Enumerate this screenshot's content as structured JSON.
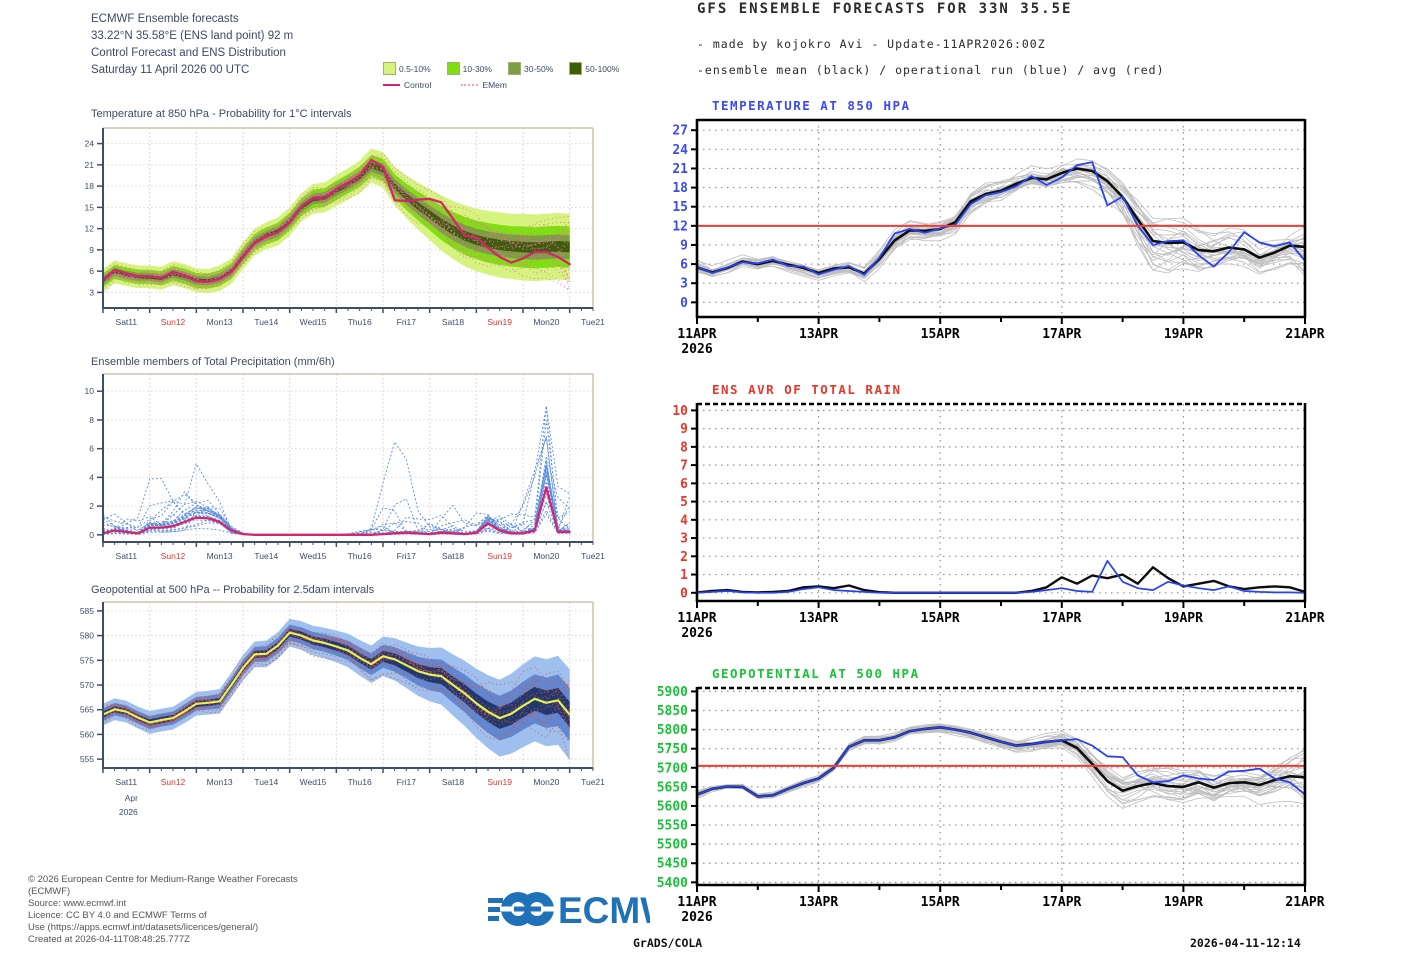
{
  "left_panel": {
    "header": {
      "line1": "ECMWF Ensemble forecasts",
      "line2": "33.22°N 35.58°E (ENS land point) 92 m",
      "line3": "Control Forecast and ENS Distribution",
      "line4": "Saturday 11 April 2026 00 UTC"
    },
    "legend": {
      "bands": [
        {
          "label": "0.5-10%",
          "color": "#d6f37f"
        },
        {
          "label": "10-30%",
          "color": "#7fe010"
        },
        {
          "label": "30-50%",
          "color": "#7d9c43"
        },
        {
          "label": "50-100%",
          "color": "#3f5c0d"
        }
      ],
      "control_label": "Control",
      "control_color": "#d6246e",
      "emem_label": "EMem",
      "emem_color": "#f2a6c6"
    },
    "x_axis": {
      "labels": [
        "Sat11",
        "Sun12",
        "Mon13",
        "Tue14",
        "Wed15",
        "Thu16",
        "Fri17",
        "Sat18",
        "Sun19",
        "Mon20",
        "Tue21"
      ],
      "red_idx": [
        1,
        8
      ],
      "month": "Apr",
      "year": "2026"
    },
    "footer": {
      "line1": "© 2026 European Centre for Medium-Range Weather Forecasts",
      "line2": "(ECMWF)",
      "line3": "Source: www.ecmwf.int",
      "line4": "Licence: CC BY 4.0 and ECMWF Terms of",
      "line5": "Use (https://apps.ecmwf.int/datasets/licences/general/)",
      "line6": "Created at 2026-04-11T08:48:25.777Z"
    },
    "logo_text": "ECMWF",
    "logo_color": "#1f72b8"
  },
  "right_panel": {
    "title": "GFS ENSEMBLE FORECASTS FOR 33N 35.5E",
    "subtitle1": "- made by kojokro Avi - Update-11APR2026:00Z",
    "subtitle2": "-ensemble mean (black) / operational run (blue) / avg (red)",
    "x_axis": {
      "labels": [
        "11APR",
        "13APR",
        "15APR",
        "17APR",
        "19APR",
        "21APR"
      ],
      "year": "2026"
    },
    "footer_left": "GrADS/COLA",
    "footer_right": "2026-04-11-12:14"
  },
  "chart_data": [
    {
      "id": "ecmwf_temp",
      "type": "line",
      "title": "Temperature at 850 hPa - Probability for 1°C intervals",
      "ylim": [
        0.8,
        26.2
      ],
      "yticks": [
        3,
        6,
        9,
        12,
        15,
        18,
        21,
        24
      ],
      "x_days": 10.5,
      "x_step": 0.25,
      "grid": true,
      "legend_position": "top-right",
      "bands": {
        "factors": [
          1,
          0.62,
          0.36,
          0.16
        ],
        "colors": [
          "#d6f37f",
          "#7fe010",
          "#7d9c43",
          "#3f5c0d"
        ]
      },
      "median": [
        4.7,
        5.9,
        5.5,
        5.2,
        5.2,
        5.0,
        5.7,
        5.3,
        4.7,
        4.6,
        5.0,
        6.0,
        8.2,
        10.1,
        11.0,
        11.6,
        13.0,
        15.0,
        16.2,
        16.4,
        17.4,
        18.3,
        19.3,
        20.9,
        20.3,
        18.0,
        16.5,
        15.2,
        14.0,
        12.8,
        11.8,
        11.0,
        10.4,
        10.0,
        9.7,
        9.5,
        9.4,
        9.3,
        9.4,
        9.5,
        9.4
      ],
      "spread": [
        1.6,
        1.6,
        1.6,
        1.6,
        1.6,
        1.6,
        1.7,
        1.7,
        1.7,
        1.7,
        1.8,
        1.8,
        1.9,
        1.9,
        1.9,
        2.0,
        2.0,
        2.0,
        2.1,
        2.1,
        2.2,
        2.2,
        2.3,
        2.4,
        2.5,
        2.7,
        3.0,
        3.3,
        3.6,
        3.9,
        4.1,
        4.3,
        4.4,
        4.5,
        4.6,
        4.6,
        4.7,
        4.7,
        4.7,
        4.7,
        4.7
      ],
      "members": {
        "count": 18,
        "color": "#ef6fae",
        "dash": "1 3",
        "width": 0.9,
        "scale": 0.85
      },
      "series": [
        {
          "name": "Control",
          "color": "#d6246e",
          "width": 2.3,
          "values": [
            4.8,
            6.2,
            5.7,
            5.3,
            5.3,
            5.0,
            5.9,
            5.4,
            4.6,
            4.5,
            4.9,
            5.9,
            8.0,
            10.0,
            10.9,
            11.5,
            12.9,
            15.1,
            16.3,
            16.2,
            17.6,
            18.5,
            19.5,
            21.7,
            20.7,
            16.0,
            15.9,
            16.1,
            16.2,
            15.7,
            13.4,
            11.0,
            10.8,
            9.3,
            8.0,
            7.2,
            7.8,
            8.7,
            8.7,
            8.0,
            7.0
          ]
        }
      ]
    },
    {
      "id": "ecmwf_precip",
      "type": "line",
      "title": "Ensemble members of Total Precipitation (mm/6h)",
      "ylim": [
        -0.5,
        11.2
      ],
      "yticks": [
        0,
        2,
        4,
        6,
        8,
        10
      ],
      "x_days": 10.5,
      "x_step": 0.25,
      "grid": true,
      "median": [
        0.1,
        0.3,
        0.2,
        0.1,
        0.5,
        0.5,
        0.6,
        0.9,
        1.2,
        1.15,
        0.9,
        0.3,
        0.05,
        0,
        0,
        0,
        0,
        0,
        0,
        0,
        0,
        0,
        0,
        0,
        0.05,
        0.1,
        0.15,
        0.1,
        0.05,
        0.15,
        0.1,
        0.05,
        0.15,
        0.8,
        0.3,
        0.1,
        0.1,
        0.3,
        3.3,
        0.2,
        0.2
      ],
      "spread": [
        0.4,
        0.5,
        0.5,
        0.4,
        0.8,
        1.1,
        1.6,
        2.0,
        2.3,
        2.0,
        1.5,
        0.8,
        0.3,
        0,
        0,
        0,
        0,
        0,
        0,
        0,
        0,
        0.1,
        0.3,
        0.6,
        1.5,
        2.5,
        2.8,
        2.5,
        2.2,
        2.8,
        2.5,
        2.2,
        2.0,
        2.5,
        2.0,
        1.5,
        1.8,
        2.5,
        3.5,
        1.5,
        0.8
      ],
      "members": {
        "count": 26,
        "color": "#5b8ede",
        "dash": "2 2",
        "width": 0.9,
        "mode": "rain",
        "scale": 2.2
      },
      "series": [
        {
          "name": "Control",
          "color": "#d6246e",
          "width": 2.3,
          "values": [
            0.1,
            0.3,
            0.2,
            0.1,
            0.5,
            0.5,
            0.6,
            0.9,
            1.2,
            1.15,
            0.9,
            0.3,
            0.05,
            0,
            0,
            0,
            0,
            0,
            0,
            0,
            0,
            0,
            0,
            0,
            0.05,
            0.1,
            0.15,
            0.1,
            0.05,
            0.15,
            0.1,
            0.05,
            0.15,
            0.8,
            0.3,
            0.1,
            0.1,
            0.3,
            3.3,
            0.2,
            0.2
          ]
        }
      ]
    },
    {
      "id": "ecmwf_geo",
      "type": "line",
      "title": "Geopotential at 500 hPa -- Probability for 2.5dam intervals",
      "ylim": [
        553.2,
        586.8
      ],
      "yticks": [
        555,
        560,
        565,
        570,
        575,
        580,
        585
      ],
      "x_days": 10.5,
      "x_step": 0.25,
      "grid": true,
      "show_month_year": true,
      "bands": {
        "factors": [
          1,
          0.58,
          0.28
        ],
        "colors": [
          "#9fc0ee",
          "#5f87d2",
          "#20386e"
        ]
      },
      "median": [
        564.0,
        565.1,
        564.6,
        563.4,
        562.4,
        562.9,
        563.3,
        564.7,
        566.2,
        566.4,
        566.7,
        570.0,
        573.5,
        576.2,
        576.3,
        578.0,
        580.6,
        580.0,
        579.0,
        578.5,
        577.8,
        577.0,
        575.5,
        574.2,
        575.8,
        575.2,
        574.0,
        572.8,
        572.1,
        571.8,
        570.0,
        568.3,
        566.3,
        564.6,
        563.3,
        564.2,
        565.8,
        567.2,
        566.4,
        566.9,
        564.0
      ],
      "spread": [
        2.2,
        2.2,
        2.2,
        2.2,
        2.3,
        2.3,
        2.3,
        2.4,
        2.4,
        2.4,
        2.5,
        2.5,
        2.6,
        2.6,
        2.7,
        2.7,
        2.8,
        2.9,
        3.0,
        3.1,
        3.2,
        3.4,
        3.6,
        3.8,
        4.0,
        4.3,
        4.6,
        5.0,
        5.4,
        5.8,
        6.2,
        6.6,
        7.0,
        7.4,
        7.8,
        8.1,
        8.4,
        8.6,
        8.8,
        9.0,
        9.2
      ],
      "members": {
        "count": 16,
        "color": "#e0523c",
        "dash": "1 3",
        "width": 0.9,
        "scale": 0.8
      },
      "series": [
        {
          "name": "Control",
          "color": "#e8ef55",
          "width": 2.2,
          "values": [
            564.0,
            565.1,
            564.6,
            563.4,
            562.4,
            562.9,
            563.3,
            564.7,
            566.2,
            566.4,
            566.7,
            570.0,
            573.5,
            576.2,
            576.3,
            578.0,
            580.6,
            580.0,
            579.0,
            578.5,
            577.8,
            577.0,
            575.5,
            574.2,
            575.8,
            575.2,
            574.0,
            572.8,
            572.1,
            571.8,
            570.0,
            568.3,
            566.3,
            564.6,
            563.3,
            564.2,
            565.8,
            567.2,
            566.4,
            566.9,
            564.0
          ]
        }
      ]
    },
    {
      "id": "gfs_temp",
      "type": "line",
      "title": "TEMPERATURE AT 850 HPA",
      "title_color": "#3b4bf0",
      "label_color": "#3b4bf0",
      "ylim": [
        -2.3,
        28.6
      ],
      "yticks": [
        0,
        3,
        6,
        9,
        12,
        15,
        18,
        21,
        24,
        27
      ],
      "x_days": 10,
      "x_step": 0.25,
      "grid": true,
      "top_solid": true,
      "avg_line": {
        "value": 12,
        "color": "#f03c32"
      },
      "median": [
        5.5,
        4.7,
        5.4,
        6.4,
        6.0,
        6.5,
        5.9,
        5.4,
        4.6,
        5.3,
        5.5,
        4.5,
        6.8,
        9.7,
        11.3,
        11.2,
        11.5,
        12.6,
        15.8,
        17.0,
        17.5,
        18.6,
        19.5,
        19.3,
        20.3,
        21.0,
        20.6,
        19.0,
        16.5,
        13.0,
        9.6,
        9.3,
        9.4,
        8.2,
        8.0,
        8.6,
        8.3,
        7.0,
        7.8,
        8.9,
        8.7
      ],
      "spread": [
        0.8,
        0.8,
        0.9,
        0.9,
        1.0,
        1.0,
        1.0,
        1.1,
        1.1,
        1.2,
        1.2,
        1.3,
        1.4,
        1.5,
        1.5,
        1.5,
        1.6,
        1.6,
        1.7,
        1.7,
        1.8,
        1.8,
        1.9,
        2.0,
        2.1,
        2.3,
        2.6,
        3.2,
        3.8,
        4.4,
        4.6,
        4.4,
        4.0,
        3.6,
        3.2,
        3.0,
        2.9,
        2.8,
        2.8,
        2.9,
        3.0
      ],
      "members": {
        "count": 26,
        "color": "#bfbfbf",
        "width": 0.8,
        "scale": 1
      },
      "series": [
        {
          "name": "ensemble mean",
          "color": "#0d0d0d",
          "width": 2.6,
          "values": [
            5.5,
            4.7,
            5.4,
            6.4,
            6.0,
            6.5,
            5.9,
            5.4,
            4.6,
            5.3,
            5.5,
            4.5,
            6.8,
            9.7,
            11.3,
            11.2,
            11.5,
            12.6,
            15.8,
            17.0,
            17.5,
            18.6,
            19.5,
            19.3,
            20.3,
            21.0,
            20.6,
            19.0,
            16.5,
            13.0,
            9.6,
            9.3,
            9.4,
            8.2,
            8.0,
            8.6,
            8.3,
            7.0,
            7.8,
            8.9,
            8.7
          ]
        },
        {
          "name": "operational run",
          "color": "#2743ee",
          "width": 1.8,
          "values": [
            5.6,
            4.6,
            5.5,
            6.3,
            6.1,
            6.7,
            5.7,
            5.6,
            4.4,
            5.1,
            5.7,
            4.3,
            7.0,
            10.8,
            11.5,
            10.9,
            11.6,
            12.2,
            15.4,
            16.8,
            17.3,
            18.2,
            19.8,
            18.4,
            19.6,
            21.5,
            22.0,
            15.2,
            16.6,
            12.0,
            9.0,
            9.6,
            9.7,
            7.4,
            5.6,
            7.9,
            11.0,
            9.4,
            8.8,
            9.4,
            6.5
          ]
        }
      ]
    },
    {
      "id": "gfs_rain",
      "type": "line",
      "title": "ENS AVR OF TOTAL RAIN",
      "title_color": "#e8372c",
      "label_color": "#e8372c",
      "ylim": [
        -0.45,
        10.35
      ],
      "yticks": [
        0,
        1,
        2,
        3,
        4,
        5,
        6,
        7,
        8,
        9,
        10
      ],
      "x_days": 10,
      "x_step": 0.25,
      "grid": true,
      "series": [
        {
          "name": "ensemble mean",
          "color": "#0d0d0d",
          "width": 2.4,
          "values": [
            0.02,
            0.1,
            0.15,
            0.05,
            0.02,
            0.05,
            0.1,
            0.3,
            0.35,
            0.25,
            0.4,
            0.15,
            0.03,
            0,
            0,
            0,
            0,
            0,
            0,
            0,
            0,
            0,
            0.1,
            0.3,
            0.85,
            0.5,
            0.95,
            0.8,
            1.0,
            0.5,
            1.4,
            0.8,
            0.35,
            0.5,
            0.65,
            0.35,
            0.2,
            0.3,
            0.35,
            0.3,
            0.05
          ]
        },
        {
          "name": "operational run",
          "color": "#2743ee",
          "width": 1.7,
          "values": [
            0,
            0.05,
            0.1,
            0.02,
            0,
            0,
            0.05,
            0.2,
            0.3,
            0.15,
            0.1,
            0.05,
            0,
            0,
            0,
            0,
            0,
            0,
            0,
            0,
            0,
            0,
            0.05,
            0.15,
            0.25,
            0.1,
            0.05,
            1.75,
            0.6,
            0.25,
            0.15,
            0.6,
            0.4,
            0.25,
            0.15,
            0.35,
            0.1,
            0.05,
            0.02,
            0.02,
            0
          ]
        }
      ]
    },
    {
      "id": "gfs_geo",
      "type": "line",
      "title": "GEOPOTENTIAL AT 500 HPA",
      "title_color": "#17c437",
      "label_color": "#17c437",
      "ylim": [
        5393,
        5909
      ],
      "yticks": [
        5400,
        5450,
        5500,
        5550,
        5600,
        5650,
        5700,
        5750,
        5800,
        5850,
        5900
      ],
      "x_days": 10,
      "x_step": 0.25,
      "grid": true,
      "avg_line": {
        "value": 5705,
        "color": "#f03c32"
      },
      "median": [
        5630,
        5645,
        5651,
        5650,
        5625,
        5628,
        5645,
        5660,
        5672,
        5700,
        5755,
        5772,
        5772,
        5780,
        5796,
        5802,
        5806,
        5800,
        5792,
        5780,
        5768,
        5758,
        5762,
        5768,
        5772,
        5752,
        5710,
        5665,
        5640,
        5652,
        5660,
        5652,
        5650,
        5662,
        5648,
        5660,
        5662,
        5655,
        5668,
        5678,
        5675
      ],
      "spread": [
        7,
        7,
        7,
        8,
        8,
        8,
        9,
        9,
        9,
        10,
        11,
        12,
        12,
        13,
        13,
        14,
        14,
        15,
        15,
        16,
        16,
        17,
        18,
        19,
        20,
        24,
        30,
        38,
        44,
        48,
        50,
        50,
        50,
        50,
        50,
        48,
        46,
        45,
        45,
        46,
        47
      ],
      "members": {
        "count": 26,
        "color": "#bfbfbf",
        "width": 0.8,
        "scale": 1
      },
      "series": [
        {
          "name": "ensemble mean",
          "color": "#0d0d0d",
          "width": 2.6,
          "values": [
            5630,
            5645,
            5651,
            5650,
            5625,
            5628,
            5645,
            5660,
            5672,
            5700,
            5755,
            5772,
            5772,
            5780,
            5796,
            5802,
            5806,
            5800,
            5792,
            5780,
            5768,
            5758,
            5762,
            5768,
            5772,
            5752,
            5710,
            5665,
            5640,
            5652,
            5660,
            5652,
            5650,
            5662,
            5648,
            5660,
            5662,
            5655,
            5668,
            5678,
            5675
          ]
        },
        {
          "name": "operational run",
          "color": "#2743ee",
          "width": 1.8,
          "values": [
            5630,
            5645,
            5651,
            5650,
            5625,
            5628,
            5645,
            5660,
            5672,
            5700,
            5755,
            5772,
            5772,
            5780,
            5796,
            5802,
            5806,
            5800,
            5792,
            5780,
            5768,
            5758,
            5762,
            5768,
            5772,
            5775,
            5758,
            5730,
            5728,
            5680,
            5662,
            5665,
            5680,
            5672,
            5668,
            5690,
            5692,
            5698,
            5672,
            5662,
            5630
          ]
        }
      ]
    }
  ]
}
